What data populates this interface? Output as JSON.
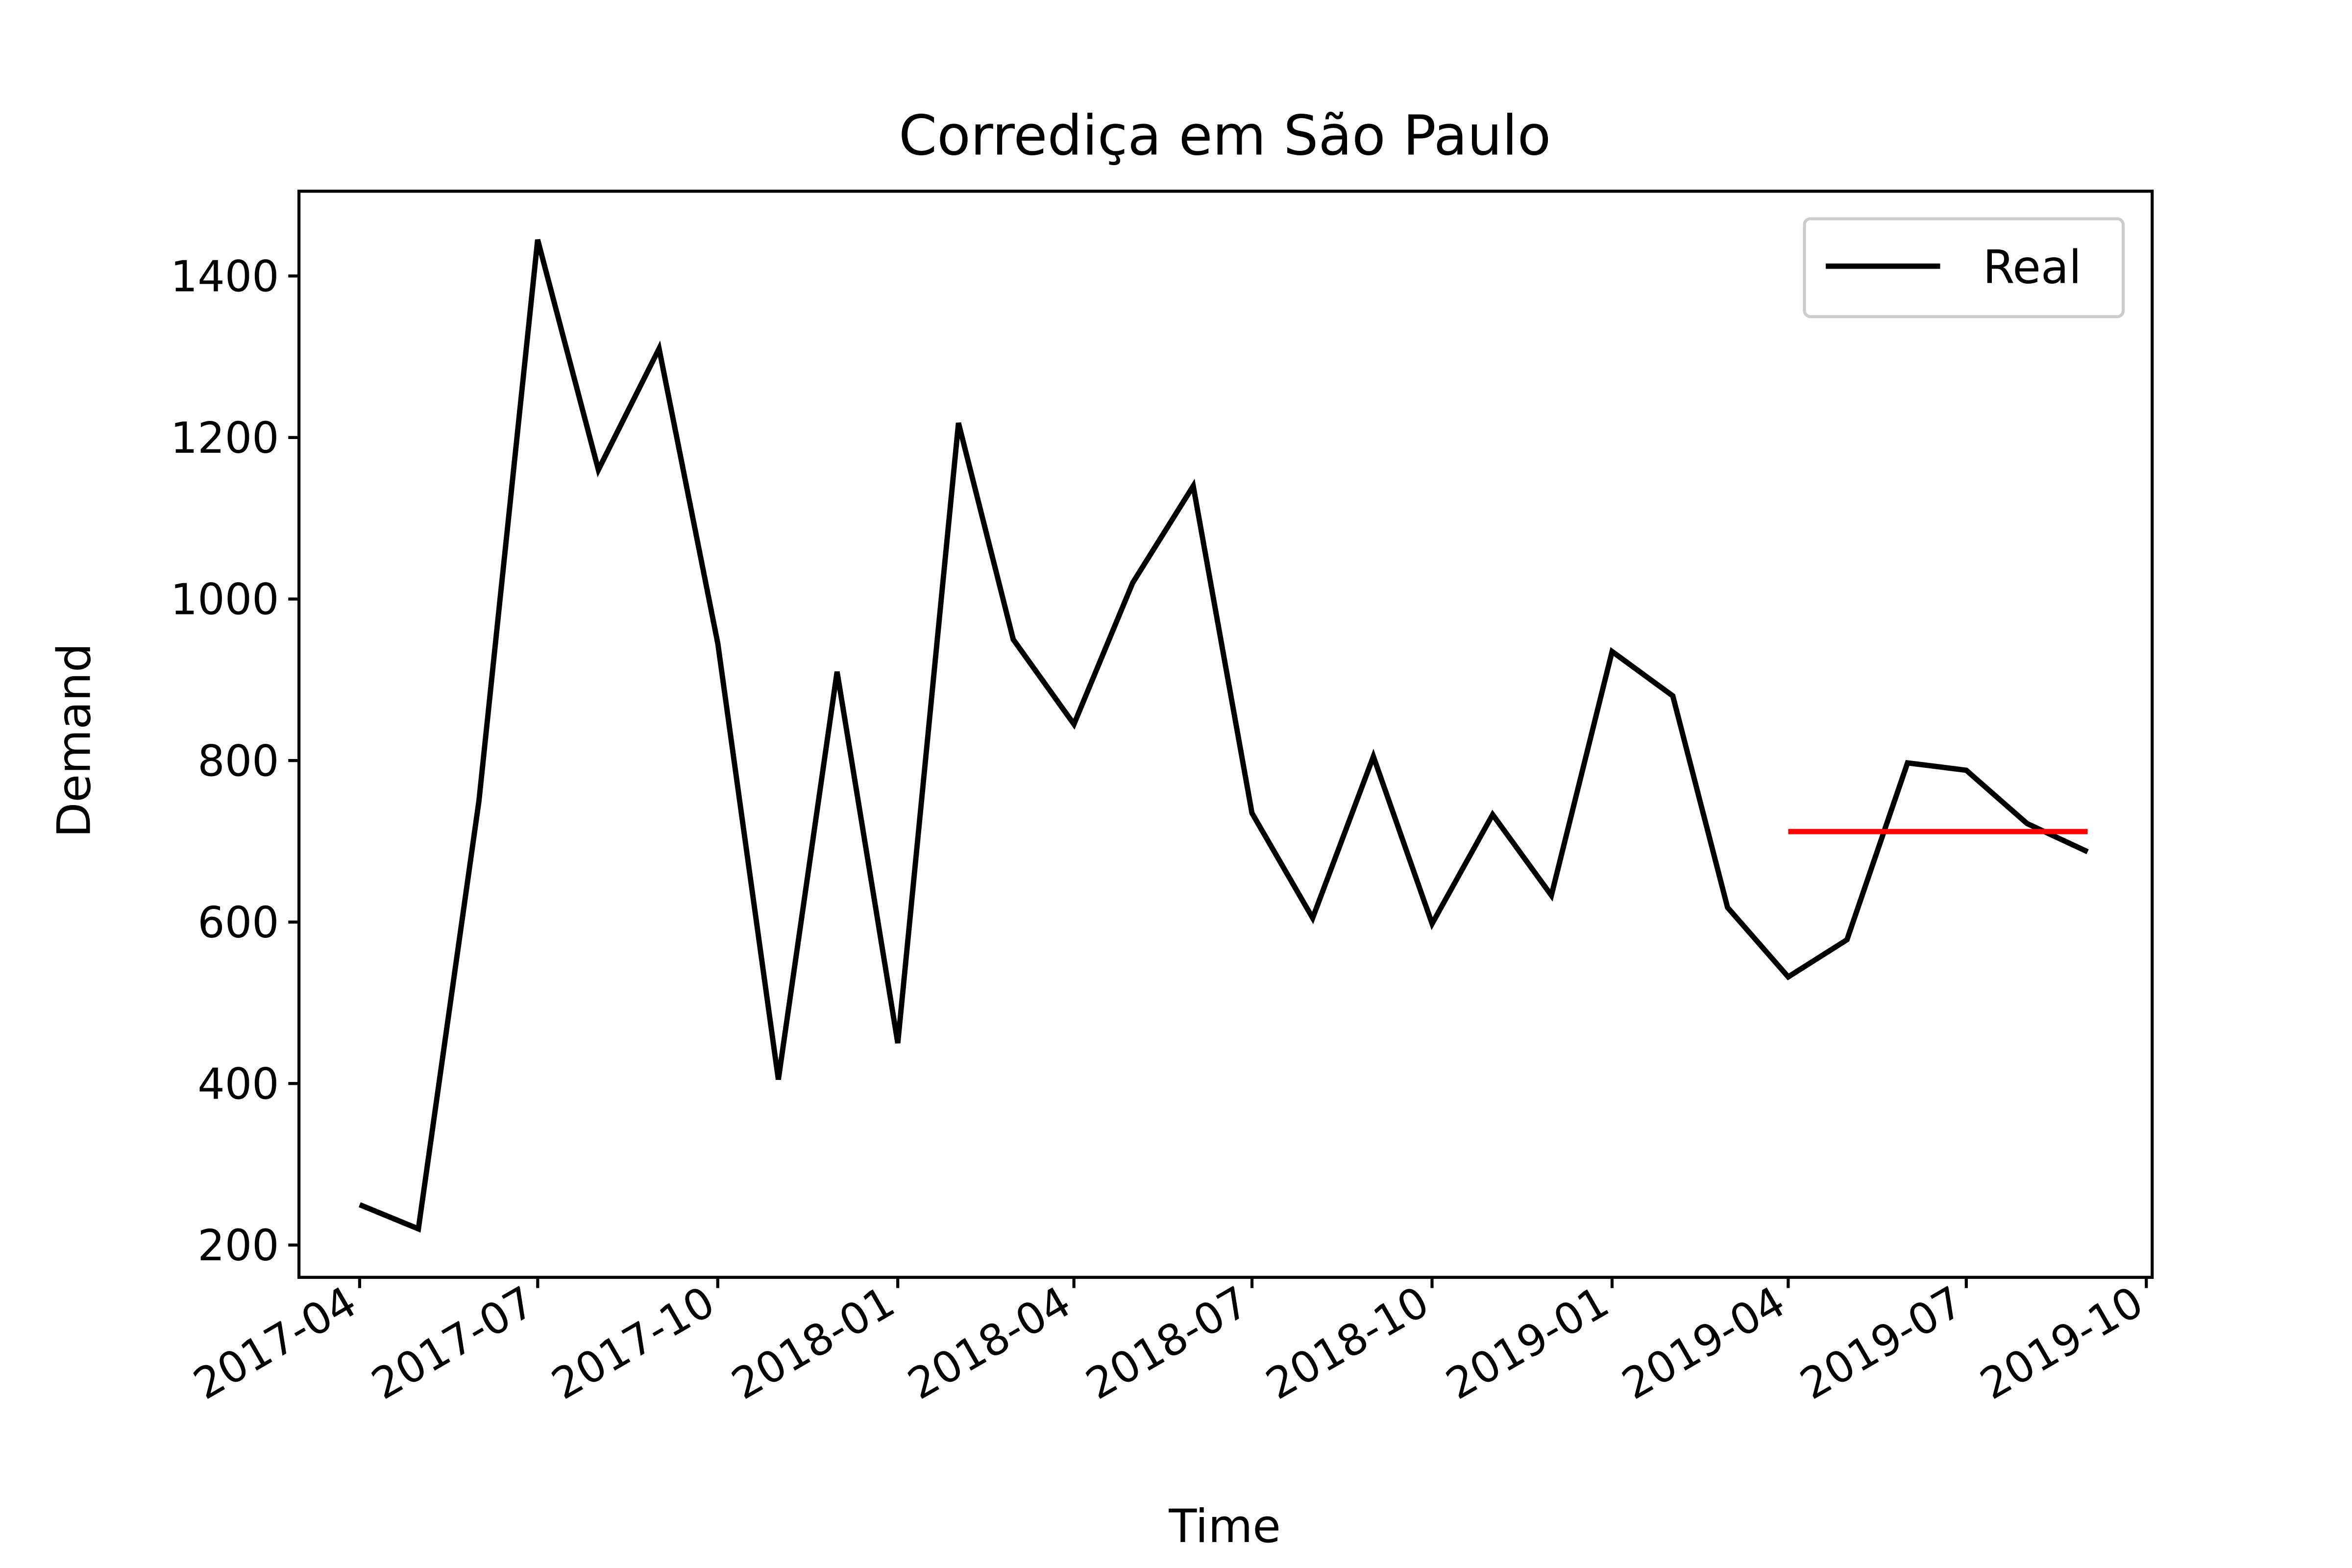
{
  "chart_data": {
    "type": "line",
    "title": "Corrediça em São Paulo",
    "xlabel": "Time",
    "ylabel": "Demand",
    "ylim": [
      160,
      1505
    ],
    "xlim": [
      "2017-03-01",
      "2019-10-04"
    ],
    "yticks": [
      200,
      400,
      600,
      800,
      1000,
      1200,
      1400
    ],
    "xticks": [
      "2017-04",
      "2017-07",
      "2017-10",
      "2018-01",
      "2018-04",
      "2018-07",
      "2018-10",
      "2019-01",
      "2019-04",
      "2019-07",
      "2019-10"
    ],
    "grid": false,
    "legend": {
      "position": "top-right",
      "entries": [
        "Real"
      ]
    },
    "series": [
      {
        "name": "Real",
        "color": "#000000",
        "x": [
          "2017-04-01",
          "2017-05-01",
          "2017-06-01",
          "2017-07-01",
          "2017-08-01",
          "2017-09-01",
          "2017-10-01",
          "2017-11-01",
          "2017-12-01",
          "2018-01-01",
          "2018-02-01",
          "2018-03-01",
          "2018-04-01",
          "2018-05-01",
          "2018-06-01",
          "2018-07-01",
          "2018-08-01",
          "2018-09-01",
          "2018-10-01",
          "2018-11-01",
          "2018-12-01",
          "2019-01-01",
          "2019-02-01",
          "2019-03-01",
          "2019-04-01",
          "2019-05-01",
          "2019-06-01",
          "2019-07-01",
          "2019-08-01",
          "2019-09-01"
        ],
        "values": [
          250,
          220,
          750,
          1445,
          1160,
          1310,
          945,
          405,
          910,
          450,
          1218,
          950,
          845,
          1020,
          1140,
          735,
          605,
          805,
          598,
          733,
          633,
          935,
          880,
          618,
          532,
          578,
          797,
          788,
          722,
          687
        ]
      },
      {
        "color": "#ff0000",
        "x": [
          "2019-04-01",
          "2019-09-01"
        ],
        "values": [
          712,
          712
        ]
      }
    ]
  }
}
